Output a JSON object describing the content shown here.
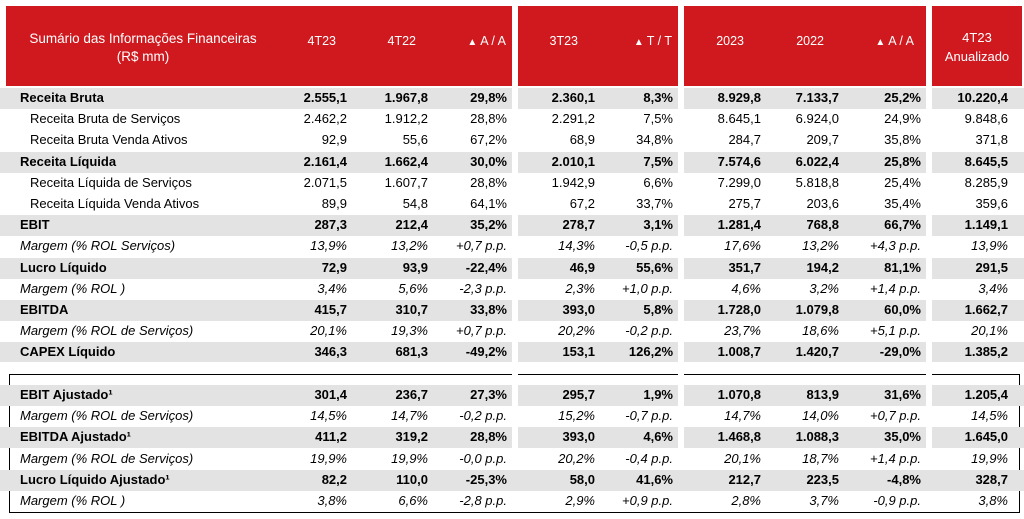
{
  "header": {
    "title_line1": "Sumário das Informações Financeiras",
    "title_line2": "(R$ mm)",
    "columns": [
      "4T23",
      "4T22",
      "A / A",
      "3T23",
      "T / T",
      "2023",
      "2022",
      "A / A"
    ],
    "annualized_line1": "4T23",
    "annualized_line2": "Anualizado",
    "triangle_glyph": "▲"
  },
  "rows": [
    {
      "label": "Receita Bruta",
      "values": [
        "2.555,1",
        "1.967,8",
        "29,8%",
        "2.360,1",
        "8,3%",
        "8.929,8",
        "7.133,7",
        "25,2%",
        "10.220,4"
      ]
    },
    {
      "label": "Receita Bruta de Serviços",
      "values": [
        "2.462,2",
        "1.912,2",
        "28,8%",
        "2.291,2",
        "7,5%",
        "8.645,1",
        "6.924,0",
        "24,9%",
        "9.848,6"
      ]
    },
    {
      "label": "Receita Bruta Venda Ativos",
      "values": [
        "92,9",
        "55,6",
        "67,2%",
        "68,9",
        "34,8%",
        "284,7",
        "209,7",
        "35,8%",
        "371,8"
      ]
    },
    {
      "label": "Receita Líquida",
      "values": [
        "2.161,4",
        "1.662,4",
        "30,0%",
        "2.010,1",
        "7,5%",
        "7.574,6",
        "6.022,4",
        "25,8%",
        "8.645,5"
      ]
    },
    {
      "label": "Receita Líquida de Serviços",
      "values": [
        "2.071,5",
        "1.607,7",
        "28,8%",
        "1.942,9",
        "6,6%",
        "7.299,0",
        "5.818,8",
        "25,4%",
        "8.285,9"
      ]
    },
    {
      "label": "Receita Líquida Venda Ativos",
      "values": [
        "89,9",
        "54,8",
        "64,1%",
        "67,2",
        "33,7%",
        "275,7",
        "203,6",
        "35,4%",
        "359,6"
      ]
    },
    {
      "label": "EBIT",
      "values": [
        "287,3",
        "212,4",
        "35,2%",
        "278,7",
        "3,1%",
        "1.281,4",
        "768,8",
        "66,7%",
        "1.149,1"
      ]
    },
    {
      "label": "Margem (% ROL Serviços)",
      "values": [
        "13,9%",
        "13,2%",
        "+0,7 p.p.",
        "14,3%",
        "-0,5 p.p.",
        "17,6%",
        "13,2%",
        "+4,3 p.p.",
        "13,9%"
      ]
    },
    {
      "label": "Lucro Líquido",
      "values": [
        "72,9",
        "93,9",
        "-22,4%",
        "46,9",
        "55,6%",
        "351,7",
        "194,2",
        "81,1%",
        "291,5"
      ]
    },
    {
      "label": "Margem (% ROL )",
      "values": [
        "3,4%",
        "5,6%",
        "-2,3 p.p.",
        "2,3%",
        "+1,0 p.p.",
        "4,6%",
        "3,2%",
        "+1,4 p.p.",
        "3,4%"
      ]
    },
    {
      "label": "EBITDA",
      "values": [
        "415,7",
        "310,7",
        "33,8%",
        "393,0",
        "5,8%",
        "1.728,0",
        "1.079,8",
        "60,0%",
        "1.662,7"
      ]
    },
    {
      "label": "Margem (% ROL de Serviços)",
      "values": [
        "20,1%",
        "19,3%",
        "+0,7 p.p.",
        "20,2%",
        "-0,2 p.p.",
        "23,7%",
        "18,6%",
        "+5,1 p.p.",
        "20,1%"
      ]
    },
    {
      "label": "CAPEX Líquido",
      "values": [
        "346,3",
        "681,3",
        "-49,2%",
        "153,1",
        "126,2%",
        "1.008,7",
        "1.420,7",
        "-29,0%",
        "1.385,2"
      ]
    }
  ],
  "adjusted_rows": [
    {
      "label": "EBIT Ajustado¹",
      "values": [
        "301,4",
        "236,7",
        "27,3%",
        "295,7",
        "1,9%",
        "1.070,8",
        "813,9",
        "31,6%",
        "1.205,4"
      ]
    },
    {
      "label": "Margem (% ROL de Serviços)",
      "values": [
        "14,5%",
        "14,7%",
        "-0,2 p.p.",
        "15,2%",
        "-0,7 p.p.",
        "14,7%",
        "14,0%",
        "+0,7 p.p.",
        "14,5%"
      ]
    },
    {
      "label": "EBITDA Ajustado¹",
      "values": [
        "411,2",
        "319,2",
        "28,8%",
        "393,0",
        "4,6%",
        "1.468,8",
        "1.088,3",
        "35,0%",
        "1.645,0"
      ]
    },
    {
      "label": "Margem (% ROL de Serviços)",
      "values": [
        "19,9%",
        "19,9%",
        "-0,0 p.p.",
        "20,2%",
        "-0,4 p.p.",
        "20,1%",
        "18,7%",
        "+1,4 p.p.",
        "19,9%"
      ]
    },
    {
      "label": "Lucro Líquido Ajustado¹",
      "values": [
        "82,2",
        "110,0",
        "-25,3%",
        "58,0",
        "41,6%",
        "212,7",
        "223,5",
        "-4,8%",
        "328,7"
      ]
    },
    {
      "label": "Margem (% ROL )",
      "values": [
        "3,8%",
        "6,6%",
        "-2,8 p.p.",
        "2,9%",
        "+0,9 p.p.",
        "2,8%",
        "3,7%",
        "-0,9 p.p.",
        "3,8%"
      ]
    }
  ],
  "colors": {
    "header_bg": "#d0191e",
    "header_text": "#ffffff",
    "row_shade": "#e3e3e3",
    "marker": "#f7e600"
  }
}
